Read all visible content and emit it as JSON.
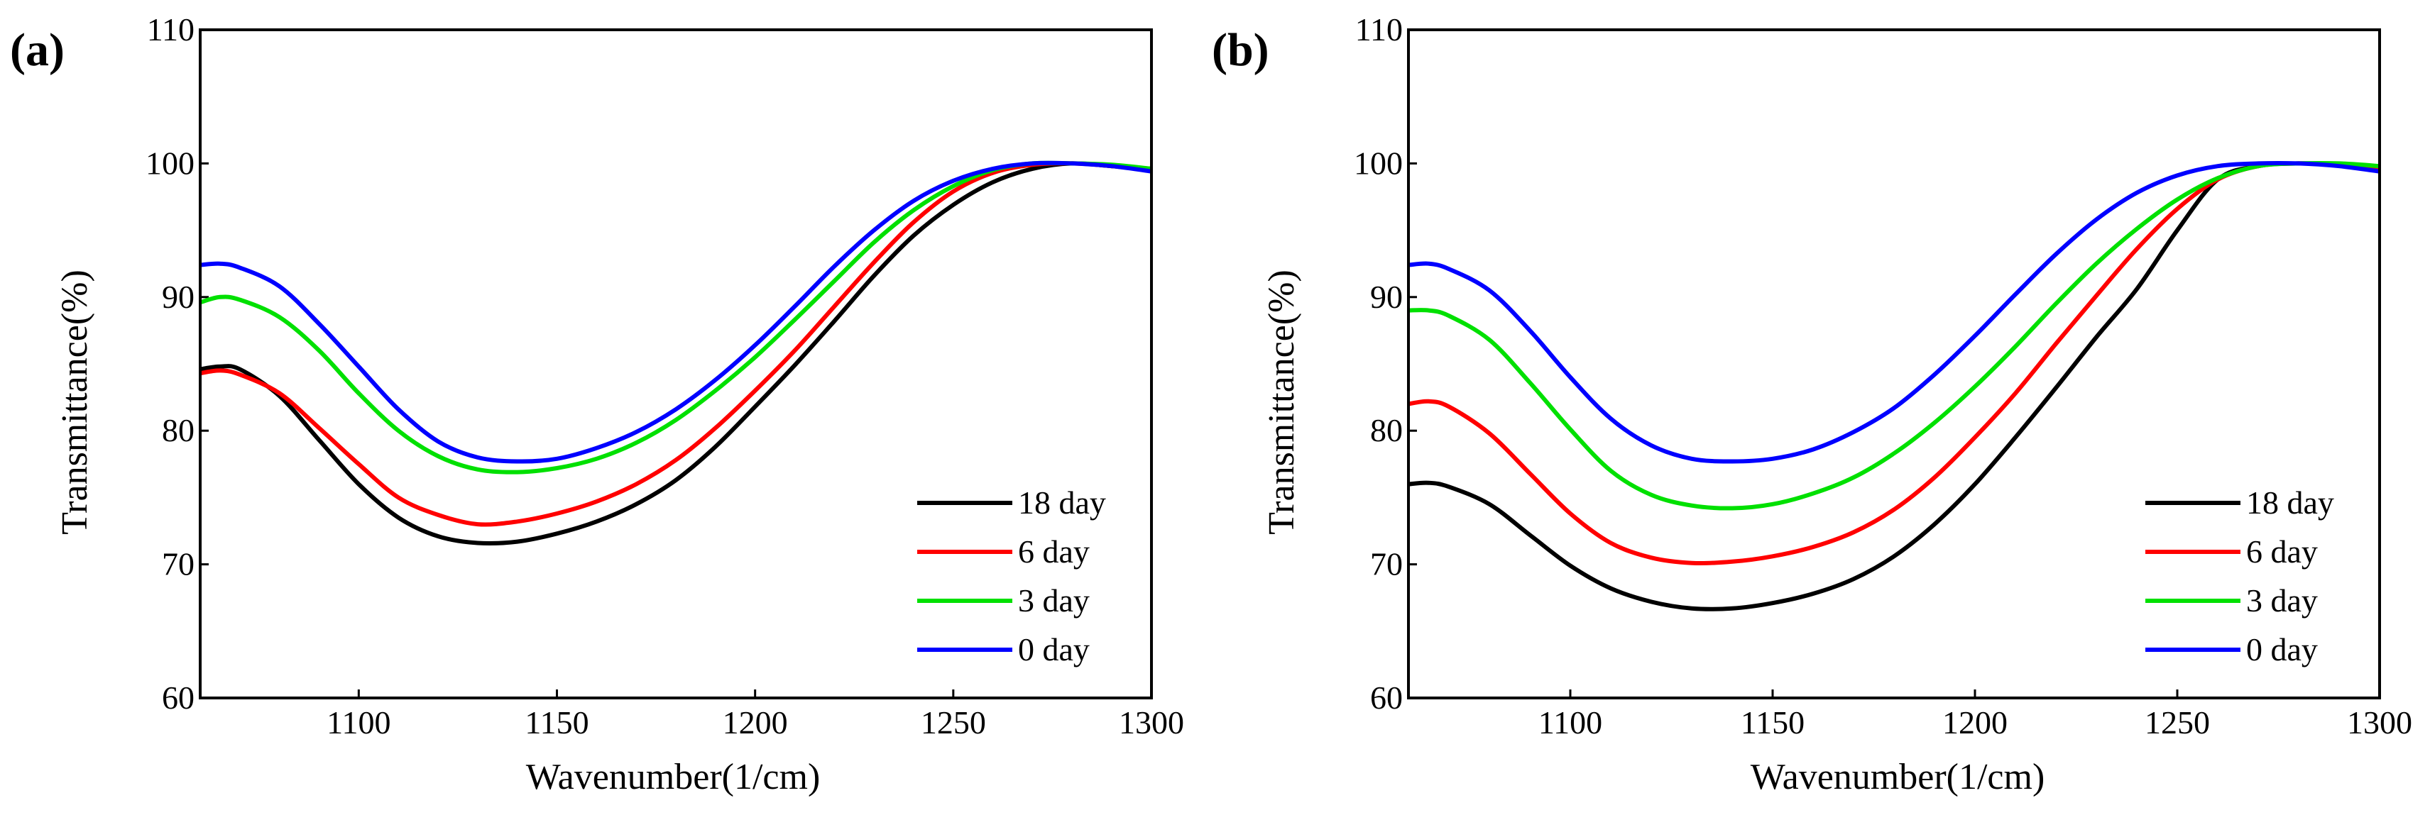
{
  "chart_data": [
    {
      "type": "line",
      "panel_label": "(a)",
      "xlabel": "Wavenumber(1/cm)",
      "ylabel": "Transmittance(%)",
      "xlim": [
        1060,
        1300
      ],
      "ylim": [
        60,
        110
      ],
      "xticks": [
        1100,
        1150,
        1200,
        1250,
        1300
      ],
      "yticks": [
        60,
        70,
        80,
        90,
        100,
        110
      ],
      "legend_position": "bottom-right",
      "x": [
        1060,
        1065,
        1070,
        1080,
        1090,
        1100,
        1110,
        1120,
        1130,
        1140,
        1150,
        1160,
        1170,
        1180,
        1190,
        1200,
        1210,
        1220,
        1230,
        1240,
        1250,
        1260,
        1270,
        1280,
        1290,
        1300
      ],
      "series": [
        {
          "name": "18 day",
          "color": "#000000",
          "values": [
            84.6,
            84.8,
            84.6,
            82.6,
            79.3,
            76.0,
            73.5,
            72.1,
            71.6,
            71.7,
            72.3,
            73.2,
            74.5,
            76.3,
            78.8,
            81.8,
            84.9,
            88.2,
            91.6,
            94.6,
            96.9,
            98.6,
            99.6,
            100.0,
            99.8,
            99.6
          ]
        },
        {
          "name": "6 day",
          "color": "#ff0000",
          "values": [
            84.3,
            84.5,
            84.2,
            82.8,
            80.2,
            77.5,
            75.0,
            73.7,
            73.0,
            73.2,
            73.8,
            74.7,
            76.0,
            77.8,
            80.2,
            83.0,
            86.0,
            89.3,
            92.6,
            95.6,
            97.9,
            99.3,
            99.9,
            100.0,
            99.8,
            99.5
          ]
        },
        {
          "name": "3 day",
          "color": "#00e000",
          "values": [
            89.6,
            90.0,
            89.8,
            88.5,
            86.0,
            82.8,
            80.0,
            78.1,
            77.1,
            76.9,
            77.2,
            77.9,
            79.1,
            80.8,
            83.0,
            85.5,
            88.3,
            91.2,
            94.1,
            96.5,
            98.3,
            99.5,
            100.0,
            100.0,
            99.9,
            99.6
          ]
        },
        {
          "name": "0 day",
          "color": "#0000ff",
          "values": [
            92.4,
            92.5,
            92.2,
            90.8,
            88.0,
            84.8,
            81.6,
            79.2,
            78.0,
            77.7,
            77.9,
            78.7,
            79.9,
            81.6,
            83.8,
            86.4,
            89.3,
            92.3,
            95.0,
            97.2,
            98.7,
            99.6,
            100.0,
            100.0,
            99.8,
            99.4
          ]
        }
      ]
    },
    {
      "type": "line",
      "panel_label": "(b)",
      "xlabel": "Wavenumber(1/cm)",
      "ylabel": "Transmittance(%)",
      "xlim": [
        1060,
        1300
      ],
      "ylim": [
        60,
        110
      ],
      "xticks": [
        1100,
        1150,
        1200,
        1250,
        1300
      ],
      "yticks": [
        60,
        70,
        80,
        90,
        100,
        110
      ],
      "legend_position": "bottom-right",
      "x": [
        1060,
        1065,
        1070,
        1080,
        1090,
        1100,
        1110,
        1120,
        1130,
        1140,
        1150,
        1160,
        1170,
        1180,
        1190,
        1200,
        1210,
        1220,
        1230,
        1240,
        1250,
        1260,
        1270,
        1280,
        1290,
        1300
      ],
      "series": [
        {
          "name": "18 day",
          "color": "#000000",
          "values": [
            76.0,
            76.1,
            75.8,
            74.5,
            72.2,
            69.9,
            68.2,
            67.2,
            66.7,
            66.7,
            67.1,
            67.8,
            68.9,
            70.6,
            73.0,
            76.0,
            79.5,
            83.2,
            87.0,
            90.6,
            95.0,
            98.8,
            99.8,
            100.0,
            99.9,
            99.6
          ]
        },
        {
          "name": "6 day",
          "color": "#ff0000",
          "values": [
            82.0,
            82.2,
            81.8,
            79.8,
            76.8,
            73.8,
            71.6,
            70.5,
            70.1,
            70.2,
            70.6,
            71.3,
            72.4,
            74.1,
            76.5,
            79.5,
            82.8,
            86.5,
            90.1,
            93.6,
            96.6,
            98.8,
            99.8,
            100.0,
            99.9,
            99.7
          ]
        },
        {
          "name": "3 day",
          "color": "#00e000",
          "values": [
            89.0,
            89.0,
            88.6,
            86.8,
            83.6,
            80.1,
            77.0,
            75.2,
            74.4,
            74.2,
            74.5,
            75.3,
            76.5,
            78.3,
            80.6,
            83.3,
            86.3,
            89.5,
            92.5,
            95.1,
            97.3,
            98.9,
            99.8,
            100.0,
            100.0,
            99.8
          ]
        },
        {
          "name": "0 day",
          "color": "#0000ff",
          "values": [
            92.4,
            92.5,
            92.1,
            90.5,
            87.5,
            84.0,
            80.9,
            78.9,
            77.9,
            77.7,
            77.9,
            78.6,
            79.9,
            81.7,
            84.2,
            87.1,
            90.2,
            93.2,
            95.8,
            97.8,
            99.1,
            99.8,
            100.0,
            100.0,
            99.8,
            99.4
          ]
        }
      ]
    }
  ]
}
